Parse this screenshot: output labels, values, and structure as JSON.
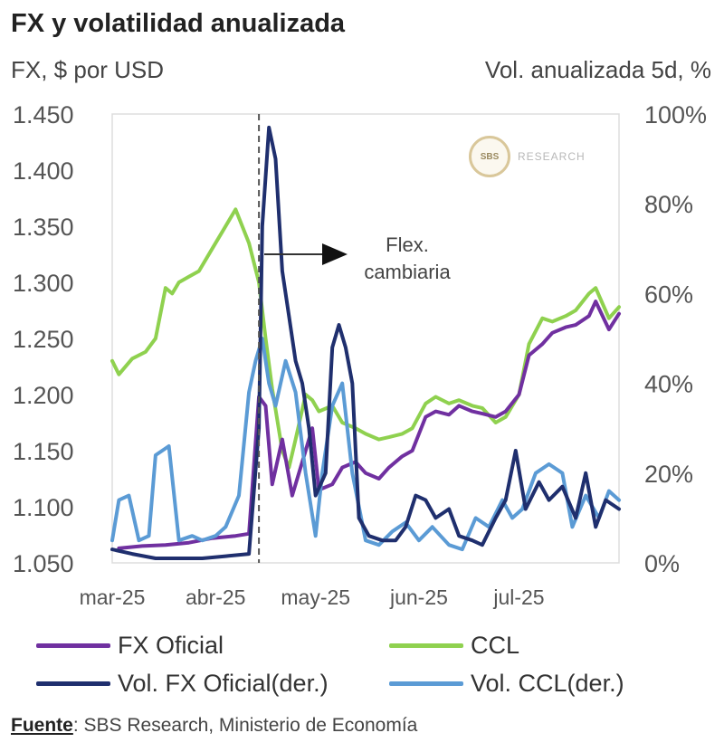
{
  "title": "FX y volatilidad anualizada",
  "left_axis_title": "FX, $ por USD",
  "right_axis_title": "Vol. anualizada 5d, %",
  "source": {
    "label": "Fuente",
    "text": ": SBS Research, Ministerio de Economía"
  },
  "logo": {
    "mark": "SBS",
    "text": "RESEARCH"
  },
  "chart_data": {
    "type": "line",
    "x_labels": [
      "mar-25",
      "abr-25",
      "may-25",
      "jun-25",
      "jul-25"
    ],
    "x_range": [
      "2025-03-01",
      "2025-07-31"
    ],
    "y_left": {
      "range": [
        1050,
        1450
      ],
      "ticks": [
        "1.050",
        "1.100",
        "1.150",
        "1.200",
        "1.250",
        "1.300",
        "1.350",
        "1.400",
        "1.450"
      ]
    },
    "y_right": {
      "range": [
        0,
        100
      ],
      "ticks": [
        "0%",
        "20%",
        "40%",
        "60%",
        "80%",
        "100%"
      ]
    },
    "vline_date": "2025-04-14",
    "annotation": {
      "line1": "Flex.",
      "line2": "cambiaria"
    },
    "series": [
      {
        "name": "FX Oficial",
        "axis": "left",
        "color": "#7030a0",
        "points": [
          [
            "2025-03-03",
            1063
          ],
          [
            "2025-03-10",
            1065
          ],
          [
            "2025-03-17",
            1066
          ],
          [
            "2025-03-24",
            1068
          ],
          [
            "2025-03-31",
            1072
          ],
          [
            "2025-04-07",
            1074
          ],
          [
            "2025-04-11",
            1076
          ],
          [
            "2025-04-14",
            1198
          ],
          [
            "2025-04-16",
            1190
          ],
          [
            "2025-04-18",
            1120
          ],
          [
            "2025-04-21",
            1160
          ],
          [
            "2025-04-24",
            1110
          ],
          [
            "2025-04-28",
            1150
          ],
          [
            "2025-04-30",
            1170
          ],
          [
            "2025-05-02",
            1115
          ],
          [
            "2025-05-06",
            1120
          ],
          [
            "2025-05-09",
            1135
          ],
          [
            "2025-05-13",
            1140
          ],
          [
            "2025-05-16",
            1130
          ],
          [
            "2025-05-20",
            1125
          ],
          [
            "2025-05-23",
            1135
          ],
          [
            "2025-05-27",
            1145
          ],
          [
            "2025-05-30",
            1150
          ],
          [
            "2025-06-03",
            1180
          ],
          [
            "2025-06-06",
            1185
          ],
          [
            "2025-06-10",
            1182
          ],
          [
            "2025-06-13",
            1190
          ],
          [
            "2025-06-17",
            1185
          ],
          [
            "2025-06-20",
            1183
          ],
          [
            "2025-06-24",
            1180
          ],
          [
            "2025-06-27",
            1185
          ],
          [
            "2025-07-01",
            1200
          ],
          [
            "2025-07-04",
            1235
          ],
          [
            "2025-07-08",
            1245
          ],
          [
            "2025-07-11",
            1255
          ],
          [
            "2025-07-15",
            1260
          ],
          [
            "2025-07-18",
            1262
          ],
          [
            "2025-07-22",
            1270
          ],
          [
            "2025-07-24",
            1283
          ],
          [
            "2025-07-28",
            1258
          ],
          [
            "2025-07-31",
            1272
          ]
        ]
      },
      {
        "name": "CCL",
        "axis": "left",
        "color": "#8fd14f",
        "points": [
          [
            "2025-03-01",
            1230
          ],
          [
            "2025-03-03",
            1218
          ],
          [
            "2025-03-07",
            1232
          ],
          [
            "2025-03-11",
            1238
          ],
          [
            "2025-03-14",
            1250
          ],
          [
            "2025-03-17",
            1295
          ],
          [
            "2025-03-19",
            1290
          ],
          [
            "2025-03-21",
            1300
          ],
          [
            "2025-03-24",
            1305
          ],
          [
            "2025-03-27",
            1310
          ],
          [
            "2025-03-31",
            1330
          ],
          [
            "2025-04-03",
            1345
          ],
          [
            "2025-04-07",
            1365
          ],
          [
            "2025-04-09",
            1350
          ],
          [
            "2025-04-11",
            1335
          ],
          [
            "2025-04-14",
            1300
          ],
          [
            "2025-04-16",
            1250
          ],
          [
            "2025-04-18",
            1205
          ],
          [
            "2025-04-21",
            1150
          ],
          [
            "2025-04-23",
            1135
          ],
          [
            "2025-04-25",
            1160
          ],
          [
            "2025-04-28",
            1200
          ],
          [
            "2025-04-30",
            1195
          ],
          [
            "2025-05-02",
            1185
          ],
          [
            "2025-05-06",
            1190
          ],
          [
            "2025-05-09",
            1175
          ],
          [
            "2025-05-13",
            1170
          ],
          [
            "2025-05-16",
            1165
          ],
          [
            "2025-05-20",
            1160
          ],
          [
            "2025-05-23",
            1162
          ],
          [
            "2025-05-27",
            1165
          ],
          [
            "2025-05-30",
            1170
          ],
          [
            "2025-06-03",
            1192
          ],
          [
            "2025-06-06",
            1198
          ],
          [
            "2025-06-10",
            1192
          ],
          [
            "2025-06-13",
            1195
          ],
          [
            "2025-06-17",
            1190
          ],
          [
            "2025-06-20",
            1188
          ],
          [
            "2025-06-24",
            1175
          ],
          [
            "2025-06-27",
            1180
          ],
          [
            "2025-07-01",
            1200
          ],
          [
            "2025-07-04",
            1245
          ],
          [
            "2025-07-08",
            1268
          ],
          [
            "2025-07-11",
            1265
          ],
          [
            "2025-07-15",
            1270
          ],
          [
            "2025-07-18",
            1275
          ],
          [
            "2025-07-22",
            1290
          ],
          [
            "2025-07-24",
            1295
          ],
          [
            "2025-07-28",
            1268
          ],
          [
            "2025-07-31",
            1278
          ]
        ]
      },
      {
        "name": "Vol. FX Oficial(der.)",
        "axis": "right",
        "color": "#1f2f6e",
        "points": [
          [
            "2025-03-01",
            3
          ],
          [
            "2025-03-07",
            2
          ],
          [
            "2025-03-14",
            1
          ],
          [
            "2025-03-21",
            1
          ],
          [
            "2025-03-28",
            1
          ],
          [
            "2025-04-04",
            1.5
          ],
          [
            "2025-04-11",
            2
          ],
          [
            "2025-04-14",
            30
          ],
          [
            "2025-04-15",
            75
          ],
          [
            "2025-04-17",
            97
          ],
          [
            "2025-04-19",
            90
          ],
          [
            "2025-04-21",
            65
          ],
          [
            "2025-04-23",
            55
          ],
          [
            "2025-04-25",
            45
          ],
          [
            "2025-04-27",
            40
          ],
          [
            "2025-04-29",
            30
          ],
          [
            "2025-05-01",
            15
          ],
          [
            "2025-05-04",
            20
          ],
          [
            "2025-05-06",
            48
          ],
          [
            "2025-05-08",
            53
          ],
          [
            "2025-05-10",
            48
          ],
          [
            "2025-05-12",
            40
          ],
          [
            "2025-05-14",
            10
          ],
          [
            "2025-05-17",
            6
          ],
          [
            "2025-05-21",
            5
          ],
          [
            "2025-05-25",
            5
          ],
          [
            "2025-05-28",
            8
          ],
          [
            "2025-05-31",
            15
          ],
          [
            "2025-06-03",
            14
          ],
          [
            "2025-06-06",
            10
          ],
          [
            "2025-06-10",
            12
          ],
          [
            "2025-06-13",
            6
          ],
          [
            "2025-06-17",
            5
          ],
          [
            "2025-06-20",
            4
          ],
          [
            "2025-06-24",
            10
          ],
          [
            "2025-06-27",
            14
          ],
          [
            "2025-06-30",
            25
          ],
          [
            "2025-07-03",
            12
          ],
          [
            "2025-07-07",
            18
          ],
          [
            "2025-07-10",
            14
          ],
          [
            "2025-07-14",
            17
          ],
          [
            "2025-07-18",
            10
          ],
          [
            "2025-07-21",
            20
          ],
          [
            "2025-07-24",
            8
          ],
          [
            "2025-07-27",
            14
          ],
          [
            "2025-07-31",
            12
          ]
        ]
      },
      {
        "name": "Vol. CCL(der.)",
        "axis": "right",
        "color": "#5b9bd5",
        "points": [
          [
            "2025-03-01",
            5
          ],
          [
            "2025-03-03",
            14
          ],
          [
            "2025-03-06",
            15
          ],
          [
            "2025-03-09",
            5
          ],
          [
            "2025-03-12",
            6
          ],
          [
            "2025-03-14",
            24
          ],
          [
            "2025-03-18",
            26
          ],
          [
            "2025-03-21",
            5
          ],
          [
            "2025-03-25",
            6
          ],
          [
            "2025-03-28",
            5
          ],
          [
            "2025-04-01",
            6
          ],
          [
            "2025-04-04",
            8
          ],
          [
            "2025-04-08",
            15
          ],
          [
            "2025-04-11",
            38
          ],
          [
            "2025-04-13",
            45
          ],
          [
            "2025-04-15",
            50
          ],
          [
            "2025-04-17",
            40
          ],
          [
            "2025-04-19",
            35
          ],
          [
            "2025-04-22",
            45
          ],
          [
            "2025-04-25",
            38
          ],
          [
            "2025-04-28",
            20
          ],
          [
            "2025-05-01",
            6
          ],
          [
            "2025-05-03",
            20
          ],
          [
            "2025-05-06",
            35
          ],
          [
            "2025-05-09",
            40
          ],
          [
            "2025-05-12",
            20
          ],
          [
            "2025-05-16",
            5
          ],
          [
            "2025-05-20",
            4
          ],
          [
            "2025-05-24",
            7
          ],
          [
            "2025-05-28",
            9
          ],
          [
            "2025-06-01",
            5
          ],
          [
            "2025-06-05",
            8
          ],
          [
            "2025-06-10",
            4
          ],
          [
            "2025-06-14",
            3
          ],
          [
            "2025-06-18",
            10
          ],
          [
            "2025-06-22",
            8
          ],
          [
            "2025-06-26",
            14
          ],
          [
            "2025-06-29",
            10
          ],
          [
            "2025-07-02",
            12
          ],
          [
            "2025-07-06",
            20
          ],
          [
            "2025-07-10",
            22
          ],
          [
            "2025-07-14",
            20
          ],
          [
            "2025-07-17",
            8
          ],
          [
            "2025-07-21",
            15
          ],
          [
            "2025-07-25",
            10
          ],
          [
            "2025-07-28",
            16
          ],
          [
            "2025-07-31",
            14
          ]
        ]
      }
    ],
    "grid": false,
    "legend_position": "bottom"
  }
}
